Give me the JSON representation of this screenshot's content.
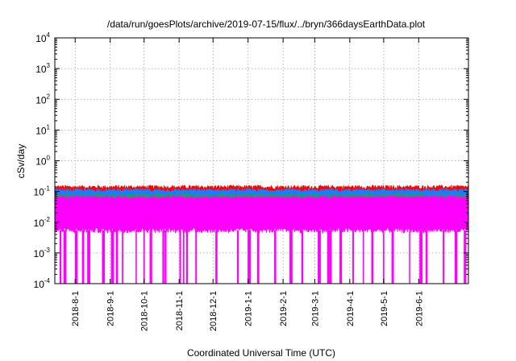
{
  "chart_data": {
    "type": "line",
    "title": "/data/run/goesPlots/archive/2019-07-15/flux/../bryn/366daysEarthData.plot",
    "xlabel": "Coordinated Universal Time (UTC)",
    "ylabel": "cSv/day",
    "yscale": "log",
    "ylim": [
      0.0001,
      10000
    ],
    "xlim": [
      "2018-07-14",
      "2019-07-15"
    ],
    "grid": true,
    "y_ticks": [
      {
        "base": "10",
        "exp": "-4"
      },
      {
        "base": "10",
        "exp": "-3"
      },
      {
        "base": "10",
        "exp": "-2"
      },
      {
        "base": "10",
        "exp": "-1"
      },
      {
        "base": "10",
        "exp": "0"
      },
      {
        "base": "10",
        "exp": "1"
      },
      {
        "base": "10",
        "exp": "2"
      },
      {
        "base": "10",
        "exp": "3"
      },
      {
        "base": "10",
        "exp": "4"
      }
    ],
    "x_ticks": [
      "2018-8-1",
      "2018-9-1",
      "2018-10-1",
      "2018-11-1",
      "2018-12-1",
      "2019-1-1",
      "2019-2-1",
      "2019-3-1",
      "2019-4-1",
      "2019-5-1",
      "2019-6-1"
    ],
    "series": [
      {
        "color": "#ff0000",
        "approx_level": 0.11,
        "spread_low": 0.095,
        "spread_high": 0.14
      },
      {
        "color": "#1e7bff",
        "approx_level": 0.085,
        "spread_low": 0.055,
        "spread_high": 0.11
      },
      {
        "color": "#22a050",
        "approx_level": 0.06,
        "spread_low": 0.045,
        "spread_high": 0.075
      },
      {
        "color": "#ff00ff",
        "approx_level": 0.05,
        "spread_low": 0.0055,
        "spread_high": 0.065,
        "dropouts_to": 0.0001
      }
    ],
    "dropout_dates": [
      "2018-07-19",
      "2018-07-23",
      "2018-08-02",
      "2018-08-08",
      "2018-08-13",
      "2018-08-26",
      "2018-09-03",
      "2018-09-07",
      "2018-09-12",
      "2018-09-24",
      "2018-10-01",
      "2018-10-07",
      "2018-10-18",
      "2018-10-20",
      "2018-11-02",
      "2018-11-05",
      "2018-11-08",
      "2018-11-16",
      "2018-12-04",
      "2018-12-23",
      "2019-01-02",
      "2019-01-10",
      "2019-01-25",
      "2019-02-08",
      "2019-02-18",
      "2019-03-05",
      "2019-03-13",
      "2019-03-15",
      "2019-03-24",
      "2019-04-04",
      "2019-04-13",
      "2019-04-21",
      "2019-05-01",
      "2019-05-09",
      "2019-05-24",
      "2019-06-03",
      "2019-06-08",
      "2019-06-23",
      "2019-07-04",
      "2019-07-12"
    ]
  }
}
